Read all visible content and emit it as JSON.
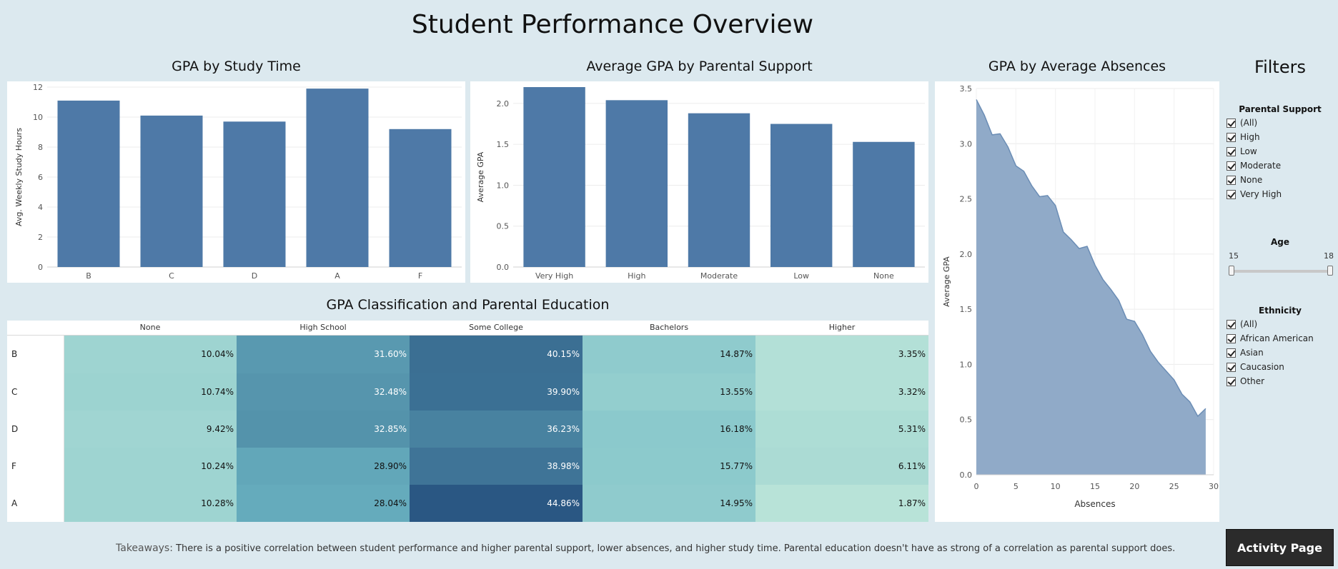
{
  "page_title": "Student Performance Overview",
  "colors": {
    "bar": "#4e79a7",
    "area": "#8aa5c5",
    "area_line": "#6b8db5",
    "heat_low": "#b8e3d8",
    "heat_high": "#2a5783"
  },
  "chart_data": [
    {
      "type": "bar",
      "title": "GPA by Study Time",
      "ylabel": "Avg. Weekly Study Hours",
      "xlabel": "",
      "categories": [
        "B",
        "C",
        "D",
        "A",
        "F"
      ],
      "values": [
        11.1,
        10.1,
        9.7,
        11.9,
        9.2
      ],
      "ylim": [
        0,
        12
      ],
      "yticks": [
        0,
        2,
        4,
        6,
        8,
        10,
        12
      ],
      "grid": true
    },
    {
      "type": "bar",
      "title": "Average GPA by Parental Support",
      "ylabel": "Average GPA",
      "xlabel": "",
      "categories": [
        "Very High",
        "High",
        "Moderate",
        "Low",
        "None"
      ],
      "values": [
        2.2,
        2.04,
        1.88,
        1.75,
        1.53
      ],
      "ylim": [
        0,
        2.2
      ],
      "yticks": [
        "0.0",
        "0.5",
        "1.0",
        "1.5",
        "2.0"
      ],
      "grid": true
    },
    {
      "type": "heatmap",
      "title": "GPA Classification and Parental Education",
      "columns": [
        "None",
        "High School",
        "Some College",
        "Bachelors",
        "Higher"
      ],
      "rows": [
        {
          "label": "B",
          "values": [
            10.04,
            31.6,
            40.15,
            14.87,
            3.35
          ],
          "display": [
            "10.04%",
            "31.60%",
            "40.15%",
            "14.87%",
            "3.35%"
          ]
        },
        {
          "label": "C",
          "values": [
            10.74,
            32.48,
            39.9,
            13.55,
            3.32
          ],
          "display": [
            "10.74%",
            "32.48%",
            "39.90%",
            "13.55%",
            "3.32%"
          ]
        },
        {
          "label": "D",
          "values": [
            9.42,
            32.85,
            36.23,
            16.18,
            5.31
          ],
          "display": [
            "9.42%",
            "32.85%",
            "36.23%",
            "16.18%",
            "5.31%"
          ]
        },
        {
          "label": "F",
          "values": [
            10.24,
            28.9,
            38.98,
            15.77,
            6.11
          ],
          "display": [
            "10.24%",
            "28.90%",
            "38.98%",
            "15.77%",
            "6.11%"
          ]
        },
        {
          "label": "A",
          "values": [
            10.28,
            28.04,
            44.86,
            14.95,
            1.87
          ],
          "display": [
            "10.28%",
            "28.04%",
            "44.86%",
            "14.95%",
            "1.87%"
          ]
        }
      ]
    },
    {
      "type": "area",
      "title": "GPA by Average Absences",
      "xlabel": "Absences",
      "ylabel": "Average GPA",
      "x": [
        0,
        1,
        2,
        3,
        4,
        5,
        6,
        7,
        8,
        9,
        10,
        11,
        12,
        13,
        14,
        15,
        16,
        17,
        18,
        19,
        20,
        21,
        22,
        23,
        24,
        25,
        26,
        27,
        28,
        29
      ],
      "y": [
        3.4,
        3.26,
        3.08,
        3.09,
        2.97,
        2.8,
        2.75,
        2.62,
        2.52,
        2.53,
        2.44,
        2.2,
        2.13,
        2.05,
        2.07,
        1.9,
        1.77,
        1.68,
        1.58,
        1.41,
        1.39,
        1.27,
        1.12,
        1.02,
        0.94,
        0.86,
        0.73,
        0.66,
        0.53,
        0.6
      ],
      "xlim": [
        0,
        30
      ],
      "ylim": [
        0,
        3.5
      ],
      "xticks": [
        "0",
        "5",
        "10",
        "15",
        "20",
        "25",
        "30"
      ],
      "yticks": [
        "0.0",
        "0.5",
        "1.0",
        "1.5",
        "2.0",
        "2.5",
        "3.0",
        "3.5"
      ],
      "grid": true
    }
  ],
  "filters": {
    "title": "Filters",
    "parental_support": {
      "title": "Parental Support",
      "items": [
        "(All)",
        "High",
        "Low",
        "Moderate",
        "None",
        "Very High"
      ]
    },
    "age": {
      "title": "Age",
      "min_label": "15",
      "max_label": "18",
      "selected": [
        15,
        18
      ],
      "range": [
        15,
        18
      ]
    },
    "ethnicity": {
      "title": "Ethnicity",
      "items": [
        "(All)",
        "African American",
        "Asian",
        "Caucasion",
        "Other"
      ]
    }
  },
  "takeaways": {
    "label": "Takeaways:",
    "text": " There is a positive correlation between student performance and higher parental support, lower absences, and higher study time.  Parental education doesn't have as strong of a correlation as parental support does."
  },
  "activity_button": "Activity Page"
}
